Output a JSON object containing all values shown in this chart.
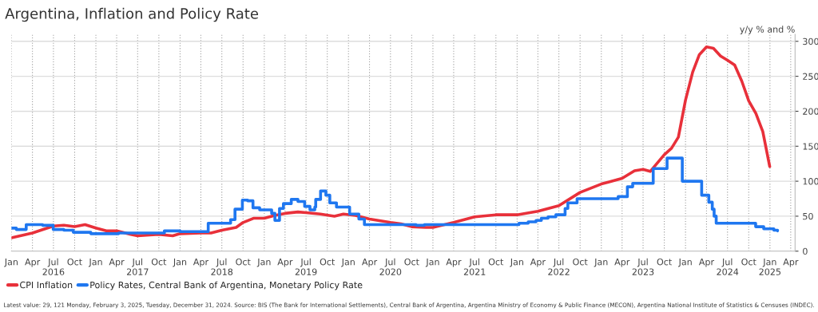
{
  "chart_data": {
    "type": "line",
    "title": "Argentina, Inflation and Policy Rate",
    "ylabel": "y/y % and %",
    "series": [
      {
        "name": "CPI Inflation",
        "color": "#e8303a",
        "x": [
          "2016-01-01",
          "2016-04-01",
          "2016-07-01",
          "2016-08-15",
          "2016-10-01",
          "2016-11-15",
          "2017-01-01",
          "2017-02-15",
          "2017-04-01",
          "2017-06-01",
          "2017-07-01",
          "2017-10-01",
          "2017-11-30",
          "2018-01-01",
          "2018-04-01",
          "2018-05-15",
          "2018-07-01",
          "2018-09-01",
          "2018-10-01",
          "2018-11-15",
          "2019-01-01",
          "2019-02-15",
          "2019-04-01",
          "2019-05-27",
          "2019-07-01",
          "2019-09-01",
          "2019-11-01",
          "2019-12-10",
          "2020-02-01",
          "2020-04-01",
          "2020-07-01",
          "2020-08-15",
          "2020-10-01",
          "2020-12-01",
          "2021-01-01",
          "2021-04-01",
          "2021-07-01",
          "2021-10-01",
          "2022-01-01",
          "2022-04-01",
          "2022-07-01",
          "2022-10-01",
          "2023-01-01",
          "2023-04-01",
          "2023-05-25",
          "2023-07-01",
          "2023-08-01",
          "2023-10-01",
          "2023-11-01",
          "2023-12-01",
          "2024-01-01",
          "2024-02-01",
          "2024-03-01",
          "2024-04-01",
          "2024-05-01",
          "2024-06-01",
          "2024-07-01",
          "2024-08-01",
          "2024-09-01",
          "2024-10-01",
          "2024-11-01",
          "2024-12-01",
          "2024-12-31"
        ],
        "values": [
          19,
          26,
          36,
          37,
          35,
          38,
          33,
          29,
          29,
          24,
          22,
          24,
          22,
          25,
          26,
          26,
          30,
          34,
          41,
          47,
          47,
          51,
          54,
          56,
          55,
          53,
          50,
          53,
          51,
          46,
          41,
          39,
          35,
          34,
          34,
          41,
          49,
          52,
          52,
          57,
          65,
          84,
          96,
          104,
          115,
          117,
          114,
          138,
          147,
          163,
          216,
          256,
          281,
          292,
          290,
          279,
          273,
          266,
          243,
          215,
          197,
          171,
          121
        ]
      },
      {
        "name": "Policy Rates, Central Bank of Argentina, Monetary Policy Rate",
        "color": "#1f77f0",
        "type": "step",
        "x": [
          "2016-01-01",
          "2016-01-22",
          "2016-03-05",
          "2016-05-15",
          "2016-06-30",
          "2016-08-15",
          "2016-09-25",
          "2016-12-10",
          "2017-04-10",
          "2017-10-25",
          "2018-01-01",
          "2018-05-03",
          "2018-08-08",
          "2018-08-27",
          "2018-09-28",
          "2018-10-21",
          "2018-11-13",
          "2018-12-12",
          "2019-02-02",
          "2019-02-16",
          "2019-03-08",
          "2019-03-25",
          "2019-04-28",
          "2019-05-27",
          "2019-06-25",
          "2019-07-18",
          "2019-08-08",
          "2019-08-12",
          "2019-09-02",
          "2019-09-25",
          "2019-10-12",
          "2019-11-10",
          "2020-01-06",
          "2020-02-15",
          "2020-03-10",
          "2020-10-20",
          "2020-11-25",
          "2022-01-09",
          "2022-02-18",
          "2022-03-24",
          "2022-04-16",
          "2022-05-15",
          "2022-06-18",
          "2022-07-28",
          "2022-08-09",
          "2022-09-18",
          "2023-03-15",
          "2023-04-24",
          "2023-05-17",
          "2023-08-14",
          "2023-10-13",
          "2023-12-18",
          "2024-03-11",
          "2024-04-11",
          "2024-04-26",
          "2024-05-04",
          "2024-05-13",
          "2024-10-31",
          "2024-12-05",
          "2025-01-18",
          "2025-02-03"
        ],
        "values": [
          33,
          31,
          38,
          37,
          31,
          30,
          27,
          25,
          26,
          29,
          28,
          40,
          45,
          60,
          73,
          72,
          62,
          59,
          54,
          44,
          61,
          68,
          74,
          71,
          64,
          59,
          63,
          74,
          86,
          80,
          69,
          63,
          53,
          46,
          38,
          37,
          38,
          40,
          42,
          44,
          47,
          49,
          52,
          61,
          69,
          75,
          78,
          92,
          97,
          118,
          133,
          100,
          80,
          70,
          60,
          50,
          40,
          35,
          32,
          30,
          29
        ]
      }
    ],
    "xlim": [
      "2016-01-01",
      "2025-04-20"
    ],
    "xticks": [
      {
        "value": "2016-01-01",
        "label": "Jan"
      },
      {
        "value": "2016-04-01",
        "label": "Apr"
      },
      {
        "value": "2016-07-01",
        "label": "Jul\n2016"
      },
      {
        "value": "2016-10-01",
        "label": "Oct"
      },
      {
        "value": "2017-01-01",
        "label": "Jan"
      },
      {
        "value": "2017-04-01",
        "label": "Apr"
      },
      {
        "value": "2017-07-01",
        "label": "Jul\n2017"
      },
      {
        "value": "2017-10-01",
        "label": "Oct"
      },
      {
        "value": "2018-01-01",
        "label": "Jan"
      },
      {
        "value": "2018-04-01",
        "label": "Apr"
      },
      {
        "value": "2018-07-01",
        "label": "Jul\n2018"
      },
      {
        "value": "2018-10-01",
        "label": "Oct"
      },
      {
        "value": "2019-01-01",
        "label": "Jan"
      },
      {
        "value": "2019-04-01",
        "label": "Apr"
      },
      {
        "value": "2019-07-01",
        "label": "Jul\n2019"
      },
      {
        "value": "2019-10-01",
        "label": "Oct"
      },
      {
        "value": "2020-01-01",
        "label": "Jan"
      },
      {
        "value": "2020-04-01",
        "label": "Apr"
      },
      {
        "value": "2020-07-01",
        "label": "Jul\n2020"
      },
      {
        "value": "2020-10-01",
        "label": "Oct"
      },
      {
        "value": "2021-01-01",
        "label": "Jan"
      },
      {
        "value": "2021-04-01",
        "label": "Apr"
      },
      {
        "value": "2021-07-01",
        "label": "Jul\n2021"
      },
      {
        "value": "2021-10-01",
        "label": "Oct"
      },
      {
        "value": "2022-01-01",
        "label": "Jan"
      },
      {
        "value": "2022-04-01",
        "label": "Apr"
      },
      {
        "value": "2022-07-01",
        "label": "Jul\n2022"
      },
      {
        "value": "2022-10-01",
        "label": "Oct"
      },
      {
        "value": "2023-01-01",
        "label": "Jan"
      },
      {
        "value": "2023-04-01",
        "label": "Apr"
      },
      {
        "value": "2023-07-01",
        "label": "Jul\n2023"
      },
      {
        "value": "2023-10-01",
        "label": "Oct"
      },
      {
        "value": "2024-01-01",
        "label": "Jan"
      },
      {
        "value": "2024-04-01",
        "label": "Apr"
      },
      {
        "value": "2024-07-01",
        "label": "Jul\n2024"
      },
      {
        "value": "2024-10-01",
        "label": "Oct"
      },
      {
        "value": "2025-01-01",
        "label": "Jan\n2025"
      },
      {
        "value": "2025-04-01",
        "label": "Apr"
      }
    ],
    "ylim": [
      0,
      310
    ],
    "yticks": [
      0,
      50,
      100,
      150,
      200,
      250,
      300
    ],
    "grid": true,
    "legend": "bottom left",
    "annotations": [
      "Latest value: 29, 121 Monday, February 3, 2025, Tuesday, December 31, 2024. Source: BIS (The Bank for International Settlements), Central Bank of Argentina, Argentina Ministry of Economy & Public Finance (MECON), Argentina National Institute of Statistics & Censuses (INDEC)."
    ]
  }
}
